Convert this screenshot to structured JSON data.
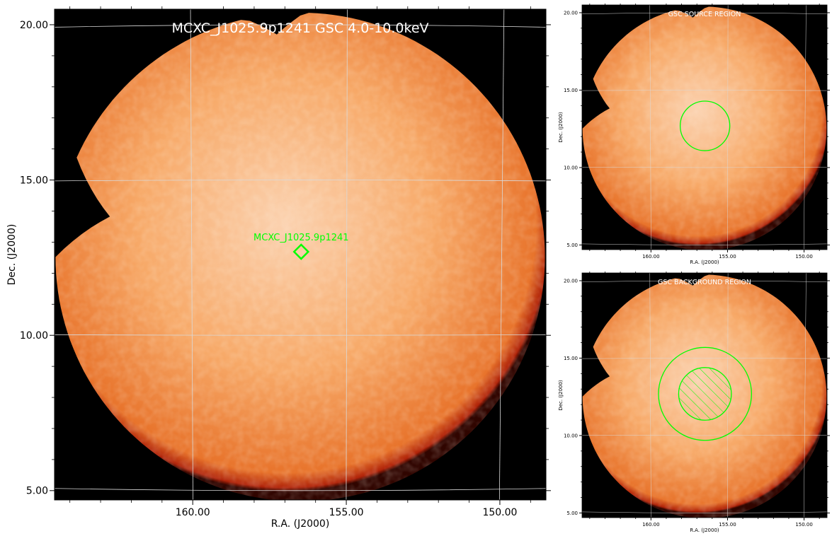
{
  "colors": {
    "background": "#000000",
    "disc_center": "#fbd2b0",
    "disc_body": "#f7a968",
    "disc_edge": "#e8742c",
    "rim": "#b0240a",
    "grid": "#d9d9d9",
    "region": "#00ff00",
    "title_text": "#ffffff"
  },
  "chart_data": [
    {
      "type": "image",
      "panel": "main",
      "title": "MCXC_J1025.9p1241 GSC 4.0-10.0keV",
      "xlabel": "R.A. (J2000)",
      "ylabel": "Dec. (J2000)",
      "xlim": [
        164.5,
        148.5
      ],
      "ylim": [
        4.7,
        20.5
      ],
      "x_ticks": [
        160.0,
        155.0,
        150.0
      ],
      "x_tick_labels": [
        "160.00",
        "155.00",
        "150.00"
      ],
      "y_ticks": [
        5.0,
        10.0,
        15.0,
        20.0
      ],
      "y_tick_labels": [
        "5.00",
        "10.00",
        "15.00",
        "20.00"
      ],
      "grid": true,
      "markers": [
        {
          "shape": "diamond",
          "ra": 156.47,
          "dec": 12.69,
          "label": "MCXC_J1025.9p1241"
        }
      ]
    },
    {
      "type": "image",
      "panel": "source-region",
      "title": "GSC SOURCE REGION",
      "xlabel": "R.A. (J2000)",
      "ylabel": "Dec. (J2000)",
      "xlim": [
        164.5,
        148.5
      ],
      "ylim": [
        4.7,
        20.5
      ],
      "x_ticks": [
        160.0,
        155.0,
        150.0
      ],
      "x_tick_labels": [
        "160.00",
        "155.00",
        "150.00"
      ],
      "y_ticks": [
        5.0,
        10.0,
        15.0,
        20.0
      ],
      "y_tick_labels": [
        "5.00",
        "10.00",
        "15.00",
        "20.00"
      ],
      "grid": true,
      "regions": [
        {
          "shape": "circle",
          "ra": 156.47,
          "dec": 12.69,
          "radius_deg": 1.6
        }
      ]
    },
    {
      "type": "image",
      "panel": "background-region",
      "title": "GSC BACKGROUND REGION",
      "xlabel": "R.A. (J2000)",
      "ylabel": "Dec. (J2000)",
      "xlim": [
        164.5,
        148.5
      ],
      "ylim": [
        4.7,
        20.5
      ],
      "x_ticks": [
        160.0,
        155.0,
        150.0
      ],
      "x_tick_labels": [
        "160.00",
        "155.00",
        "150.00"
      ],
      "y_ticks": [
        5.0,
        10.0,
        15.0,
        20.0
      ],
      "y_tick_labels": [
        "5.00",
        "10.00",
        "15.00",
        "20.00"
      ],
      "grid": true,
      "regions": [
        {
          "shape": "annulus",
          "ra": 156.47,
          "dec": 12.69,
          "inner_radius_deg": 1.7,
          "outer_radius_deg": 3.0,
          "excluded_hatched": true
        }
      ]
    }
  ]
}
